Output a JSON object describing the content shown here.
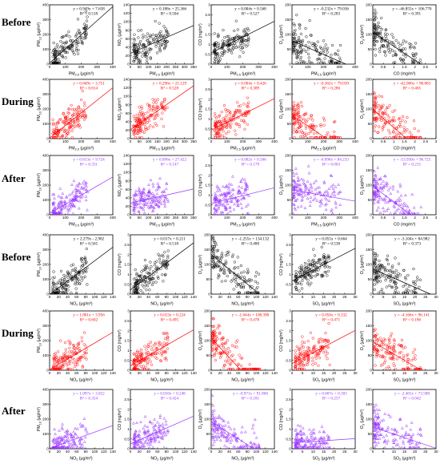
{
  "row_labels": [
    "Before",
    "During",
    "After",
    "Before",
    "During",
    "After"
  ],
  "colors": {
    "before": "#000000",
    "during": "#ff0000",
    "after": "#9933ff"
  },
  "chart_data": [
    {
      "type": "scatter",
      "period": "Before",
      "marker": "circle",
      "xlabel": "PM2.5 (μg/m³)",
      "ylabel": "PM10 (μg/m³)",
      "xlim": [
        0,
        400
      ],
      "ylim": [
        0,
        400
      ],
      "xticks": [
        0,
        100,
        200,
        300,
        400
      ],
      "yticks": [
        0,
        100,
        200,
        300,
        400
      ],
      "eq": "y = 0.949x + 7.658",
      "r2": "R² = 0.518",
      "slope": 0.949,
      "intercept": 7.658
    },
    {
      "type": "scatter",
      "period": "Before",
      "marker": "circle",
      "xlabel": "PM2.5 (μg/m³)",
      "ylabel": "NO2 (μg/m³)",
      "xlim": [
        0,
        350
      ],
      "ylim": [
        0,
        140
      ],
      "xticks": [
        0,
        50,
        100,
        150,
        200,
        250,
        300,
        350
      ],
      "yticks": [
        0,
        20,
        40,
        60,
        80,
        100,
        120,
        140
      ],
      "eq": "y = 0.188x + 25.366",
      "r2": "R² = 0.504",
      "slope": 0.188,
      "intercept": 25.366
    },
    {
      "type": "scatter",
      "period": "Before",
      "marker": "circle",
      "xlabel": "PM2.5 (μg/m³)",
      "ylabel": "CO (mg/m³)",
      "xlim": [
        0,
        400
      ],
      "ylim": [
        0,
        3
      ],
      "xticks": [
        0,
        100,
        200,
        300,
        400
      ],
      "yticks": [
        0,
        0.5,
        1,
        1.5,
        2,
        2.5,
        3
      ],
      "eq": "y = 0.004x + 0.568",
      "r2": "R² = 0.527",
      "slope": 0.004,
      "intercept": 0.568
    },
    {
      "type": "scatter",
      "period": "Before",
      "marker": "circle",
      "xlabel": "PM2.5 (μg/m³)",
      "ylabel": "O3 (μg/m³)",
      "xlim": [
        0,
        400
      ],
      "ylim": [
        0,
        200
      ],
      "xticks": [
        0,
        100,
        200,
        300,
        400
      ],
      "yticks": [
        0,
        50,
        100,
        150,
        200
      ],
      "eq": "y = -0.232x + 79.036",
      "r2": "R² = 0.283",
      "slope": -0.232,
      "intercept": 79.036
    },
    {
      "type": "scatter",
      "period": "Before",
      "marker": "circle",
      "xlabel": "CO (mg/m³)",
      "ylabel": "O3 (μg/m³)",
      "xlim": [
        0,
        3
      ],
      "ylim": [
        0,
        200
      ],
      "xticks": [
        0,
        0.5,
        1,
        1.5,
        2,
        2.5,
        3
      ],
      "yticks": [
        0,
        50,
        100,
        150,
        200
      ],
      "eq": "y = -46.855x + 106.770",
      "r2": "R² = 0.391",
      "slope": -46.855,
      "intercept": 106.77
    },
    {
      "type": "scatter",
      "period": "During",
      "marker": "circle",
      "xlabel": "PM2.5 (μg/m³)",
      "ylabel": "PM10 (μg/m³)",
      "xlim": [
        0,
        400
      ],
      "ylim": [
        0,
        400
      ],
      "xticks": [
        0,
        100,
        200,
        300,
        400
      ],
      "yticks": [
        0,
        100,
        200,
        300,
        400
      ],
      "eq": "y = 0.849x + 3.751",
      "r2": "R² = 0.814",
      "slope": 0.849,
      "intercept": 3.751
    },
    {
      "type": "scatter",
      "period": "During",
      "marker": "circle",
      "xlabel": "PM2.5 (μg/m³)",
      "ylabel": "NO2 (μg/m³)",
      "xlim": [
        0,
        350
      ],
      "ylim": [
        0,
        140
      ],
      "xticks": [
        0,
        50,
        100,
        150,
        200,
        250,
        300,
        350
      ],
      "yticks": [
        0,
        20,
        40,
        60,
        80,
        100,
        120,
        140
      ],
      "eq": "y = 0.296x + 21.129",
      "r2": "R² = 0.528",
      "slope": 0.296,
      "intercept": 21.129
    },
    {
      "type": "scatter",
      "period": "During",
      "marker": "circle",
      "xlabel": "PM2.5 (μg/m³)",
      "ylabel": "CO (mg/m³)",
      "xlim": [
        0,
        400
      ],
      "ylim": [
        0,
        3
      ],
      "xticks": [
        0,
        100,
        200,
        300,
        400
      ],
      "yticks": [
        0,
        0.5,
        1,
        1.5,
        2,
        2.5,
        3
      ],
      "eq": "y = 0.004x + 0.426",
      "r2": "R² = 0.389",
      "slope": 0.004,
      "intercept": 0.426
    },
    {
      "type": "scatter",
      "period": "During",
      "marker": "circle",
      "xlabel": "PM2.5 (μg/m³)",
      "ylabel": "O3 (μg/m³)",
      "xlim": [
        0,
        400
      ],
      "ylim": [
        0,
        200
      ],
      "xticks": [
        0,
        100,
        200,
        300,
        400
      ],
      "yticks": [
        0,
        50,
        100,
        150,
        200
      ],
      "eq": "y = -0.362x + 79.039",
      "r2": "R² = 0.286",
      "slope": -0.362,
      "intercept": 79.039
    },
    {
      "type": "scatter",
      "period": "During",
      "marker": "circle",
      "xlabel": "CO (mg/m³)",
      "ylabel": "O3 (μg/m³)",
      "xlim": [
        0,
        3
      ],
      "ylim": [
        0,
        200
      ],
      "xticks": [
        0,
        0.5,
        1,
        1.5,
        2,
        2.5,
        3
      ],
      "yticks": [
        0,
        50,
        100,
        150,
        200
      ],
      "eq": "y = -62.006x + 98.883",
      "r2": "R² = 0.465",
      "slope": -62.006,
      "intercept": 98.883
    },
    {
      "type": "scatter",
      "period": "After",
      "marker": "triangle",
      "xlabel": "PM2.5 (μg/m³)",
      "ylabel": "PM10 (μg/m³)",
      "xlim": [
        0,
        400
      ],
      "ylim": [
        0,
        400
      ],
      "xticks": [
        0,
        100,
        200,
        300,
        400
      ],
      "yticks": [
        0,
        100,
        200,
        300,
        400
      ],
      "eq": "y = 0.613x + 9.724",
      "r2": "R² = 0.331",
      "slope": 0.613,
      "intercept": 9.724
    },
    {
      "type": "scatter",
      "period": "After",
      "marker": "triangle",
      "xlabel": "PM2.5 (μg/m³)",
      "ylabel": "NO2 (μg/m³)",
      "xlim": [
        0,
        350
      ],
      "ylim": [
        0,
        140
      ],
      "xticks": [
        0,
        50,
        100,
        150,
        200,
        250,
        300,
        350
      ],
      "yticks": [
        0,
        20,
        40,
        60,
        80,
        100,
        120,
        140
      ],
      "eq": "y = 0.096x + 27.422",
      "r2": "R² = 0.147",
      "slope": 0.096,
      "intercept": 27.422
    },
    {
      "type": "scatter",
      "period": "After",
      "marker": "triangle",
      "xlabel": "PM2.5 (μg/m³)",
      "ylabel": "CO (mg/m³)",
      "xlim": [
        0,
        400
      ],
      "ylim": [
        0,
        3
      ],
      "xticks": [
        0,
        100,
        200,
        300,
        400
      ],
      "yticks": [
        0,
        0.5,
        1,
        1.5,
        2,
        2.5,
        3
      ],
      "eq": "y = 0.002x + 0.566",
      "r2": "R² = 0.179",
      "slope": 0.002,
      "intercept": 0.566
    },
    {
      "type": "scatter",
      "period": "After",
      "marker": "triangle",
      "xlabel": "PM2.5 (μg/m³)",
      "ylabel": "O3 (μg/m³)",
      "xlim": [
        0,
        400
      ],
      "ylim": [
        0,
        200
      ],
      "xticks": [
        0,
        100,
        200,
        300,
        400
      ],
      "yticks": [
        0,
        50,
        100,
        150,
        200
      ],
      "eq": "y = -0.096x + 84.233",
      "r2": "R² = 0.063",
      "slope": -0.096,
      "intercept": 84.233
    },
    {
      "type": "scatter",
      "period": "After",
      "marker": "triangle",
      "xlabel": "CO (mg/m³)",
      "ylabel": "O3 (μg/m³)",
      "xlim": [
        0,
        3
      ],
      "ylim": [
        0,
        200
      ],
      "xticks": [
        0,
        0.5,
        1,
        1.5,
        2,
        2.5,
        3
      ],
      "yticks": [
        0,
        50,
        100,
        150,
        200
      ],
      "eq": "y = -53.930x + 96.725",
      "r2": "R² = 0.215",
      "slope": -53.93,
      "intercept": 96.725
    },
    {
      "type": "scatter",
      "period": "Before",
      "marker": "circle",
      "xlabel": "NO2 (μg/m³)",
      "ylabel": "PM10 (μg/m³)",
      "xlim": [
        0,
        140
      ],
      "ylim": [
        0,
        400
      ],
      "xticks": [
        0,
        20,
        40,
        60,
        80,
        100,
        120,
        140
      ],
      "yticks": [
        0,
        100,
        200,
        300,
        400
      ],
      "eq": "y = 2.279x - 2.902",
      "r2": "R² = 0.565",
      "slope": 2.279,
      "intercept": -2.902
    },
    {
      "type": "scatter",
      "period": "Before",
      "marker": "circle",
      "xlabel": "NO2 (μg/m³)",
      "ylabel": "CO (mg/m³)",
      "xlim": [
        0,
        140
      ],
      "ylim": [
        0,
        3
      ],
      "xticks": [
        0,
        20,
        40,
        60,
        80,
        100,
        120,
        140
      ],
      "yticks": [
        0,
        0.5,
        1,
        1.5,
        2,
        2.5,
        3
      ],
      "eq": "y = 0.017x + 0.211",
      "r2": "R² = 0.518",
      "slope": 0.017,
      "intercept": 0.211
    },
    {
      "type": "scatter",
      "period": "Before",
      "marker": "circle",
      "xlabel": "NO2 (μg/m³)",
      "ylabel": "O3 (μg/m³)",
      "xlim": [
        0,
        140
      ],
      "ylim": [
        0,
        200
      ],
      "xticks": [
        0,
        20,
        40,
        60,
        80,
        100,
        120,
        140
      ],
      "yticks": [
        0,
        50,
        100,
        150,
        200
      ],
      "eq": "y = -1.255x + 134.132",
      "r2": "R² = 0.480",
      "slope": -1.255,
      "intercept": 134.132
    },
    {
      "type": "scatter",
      "period": "Before",
      "marker": "circle",
      "xlabel": "SO2 (μg/m³)",
      "ylabel": "CO (mg/m³)",
      "xlim": [
        0,
        30
      ],
      "ylim": [
        0,
        3
      ],
      "xticks": [
        0,
        5,
        10,
        15,
        20,
        25,
        30
      ],
      "yticks": [
        0,
        0.5,
        1,
        1.5,
        2,
        2.5,
        3
      ],
      "eq": "y = 0.055x + 0.664",
      "r2": "R² = 0.538",
      "slope": 0.055,
      "intercept": 0.664
    },
    {
      "type": "scatter",
      "period": "Before",
      "marker": "circle",
      "xlabel": "SO2 (μg/m³)",
      "ylabel": "O3 (μg/m³)",
      "xlim": [
        0,
        30
      ],
      "ylim": [
        0,
        200
      ],
      "xticks": [
        0,
        5,
        10,
        15,
        20,
        25,
        30
      ],
      "yticks": [
        0,
        50,
        100,
        150,
        200
      ],
      "eq": "y = -3.104x + 84.982",
      "r2": "R² = 0.373",
      "slope": -3.104,
      "intercept": 84.982
    },
    {
      "type": "scatter",
      "period": "During",
      "marker": "circle",
      "xlabel": "NO2 (μg/m³)",
      "ylabel": "PM10 (μg/m³)",
      "xlim": [
        0,
        140
      ],
      "ylim": [
        0,
        400
      ],
      "xticks": [
        0,
        20,
        40,
        60,
        80,
        100,
        120,
        140
      ],
      "yticks": [
        0,
        100,
        200,
        300,
        400
      ],
      "eq": "y = 1.801x + 3.956",
      "r2": "R² = 0.602",
      "slope": 1.801,
      "intercept": 3.956
    },
    {
      "type": "scatter",
      "period": "During",
      "marker": "circle",
      "xlabel": "NO2 (μg/m³)",
      "ylabel": "CO (mg/m³)",
      "xlim": [
        0,
        140
      ],
      "ylim": [
        0,
        3
      ],
      "xticks": [
        0,
        20,
        40,
        60,
        80,
        100,
        120,
        140
      ],
      "yticks": [
        0,
        0.5,
        1,
        1.5,
        2,
        2.5,
        3
      ],
      "eq": "y = 0.013x + 0.224",
      "r2": "R² = 0.495",
      "slope": 0.013,
      "intercept": 0.224
    },
    {
      "type": "scatter",
      "period": "During",
      "marker": "circle",
      "xlabel": "NO2 (μg/m³)",
      "ylabel": "O3 (μg/m³)",
      "xlim": [
        0,
        140
      ],
      "ylim": [
        0,
        200
      ],
      "xticks": [
        0,
        20,
        40,
        60,
        80,
        100,
        120,
        140
      ],
      "yticks": [
        0,
        50,
        100,
        150,
        200
      ],
      "eq": "y = -1.644x + 108.390",
      "r2": "R² = 0.478",
      "slope": -1.644,
      "intercept": 108.39
    },
    {
      "type": "scatter",
      "period": "During",
      "marker": "circle",
      "xlabel": "SO2 (μg/m³)",
      "ylabel": "CO (mg/m³)",
      "xlim": [
        0,
        30
      ],
      "ylim": [
        0,
        3
      ],
      "xticks": [
        0,
        5,
        10,
        15,
        20,
        25,
        30
      ],
      "yticks": [
        0,
        0.5,
        1,
        1.5,
        2,
        2.5,
        3
      ],
      "eq": "y = 0.056x + 0.332",
      "r2": "R² = 0.471",
      "slope": 0.056,
      "intercept": 0.332
    },
    {
      "type": "scatter",
      "period": "During",
      "marker": "circle",
      "xlabel": "SO2 (μg/m³)",
      "ylabel": "O3 (μg/m³)",
      "xlim": [
        0,
        30
      ],
      "ylim": [
        0,
        200
      ],
      "xticks": [
        0,
        5,
        10,
        15,
        20,
        25,
        30
      ],
      "yticks": [
        0,
        50,
        100,
        150,
        200
      ],
      "eq": "y = -4.166x + 96.141",
      "r2": "R² = 0.186",
      "slope": -4.166,
      "intercept": 96.141
    },
    {
      "type": "scatter",
      "period": "After",
      "marker": "triangle",
      "xlabel": "NO2 (μg/m³)",
      "ylabel": "PM10 (μg/m³)",
      "xlim": [
        0,
        140
      ],
      "ylim": [
        0,
        400
      ],
      "xticks": [
        0,
        20,
        40,
        60,
        80,
        100,
        120,
        140
      ],
      "yticks": [
        0,
        100,
        200,
        300,
        400
      ],
      "eq": "y = 1.097x + 3.052",
      "r2": "R² = 0.354",
      "slope": 1.097,
      "intercept": 3.052
    },
    {
      "type": "scatter",
      "period": "After",
      "marker": "triangle",
      "xlabel": "NO2 (μg/m³)",
      "ylabel": "CO (mg/m³)",
      "xlim": [
        0,
        140
      ],
      "ylim": [
        0,
        3
      ],
      "xticks": [
        0,
        20,
        40,
        60,
        80,
        100,
        120,
        140
      ],
      "yticks": [
        0,
        0.5,
        1,
        1.5,
        2,
        2.5,
        3
      ],
      "eq": "y = 0.010x + 0.248",
      "r2": "R² = 0.424",
      "slope": 0.01,
      "intercept": 0.248
    },
    {
      "type": "scatter",
      "period": "After",
      "marker": "triangle",
      "xlabel": "NO2 (μg/m³)",
      "ylabel": "O3 (μg/m³)",
      "xlim": [
        0,
        140
      ],
      "ylim": [
        0,
        200
      ],
      "xticks": [
        0,
        20,
        40,
        60,
        80,
        100,
        120,
        140
      ],
      "yticks": [
        0,
        50,
        100,
        150,
        200
      ],
      "eq": "y = -0.971x + 91.806",
      "r2": "R² = 0.181",
      "slope": -0.971,
      "intercept": 91.806
    },
    {
      "type": "scatter",
      "period": "After",
      "marker": "triangle",
      "xlabel": "SO2 (μg/m³)",
      "ylabel": "CO (mg/m³)",
      "xlim": [
        0,
        30
      ],
      "ylim": [
        0,
        3
      ],
      "xticks": [
        0,
        5,
        10,
        15,
        20,
        25,
        30
      ],
      "yticks": [
        0,
        0.5,
        1,
        1.5,
        2,
        2.5,
        3
      ],
      "eq": "y = 0.007x + 0.303",
      "r2": "R² = 0.257",
      "slope": 0.007,
      "intercept": 0.303
    },
    {
      "type": "scatter",
      "period": "After",
      "marker": "triangle",
      "xlabel": "SO2 (μg/m³)",
      "ylabel": "O3 (μg/m³)",
      "xlim": [
        0,
        30
      ],
      "ylim": [
        0,
        200
      ],
      "xticks": [
        0,
        5,
        10,
        15,
        20,
        25,
        30
      ],
      "yticks": [
        0,
        50,
        100,
        150,
        200
      ],
      "eq": "y = -2.401x + 73.588",
      "r2": "R² = 0.042",
      "slope": -2.401,
      "intercept": 73.588
    }
  ]
}
